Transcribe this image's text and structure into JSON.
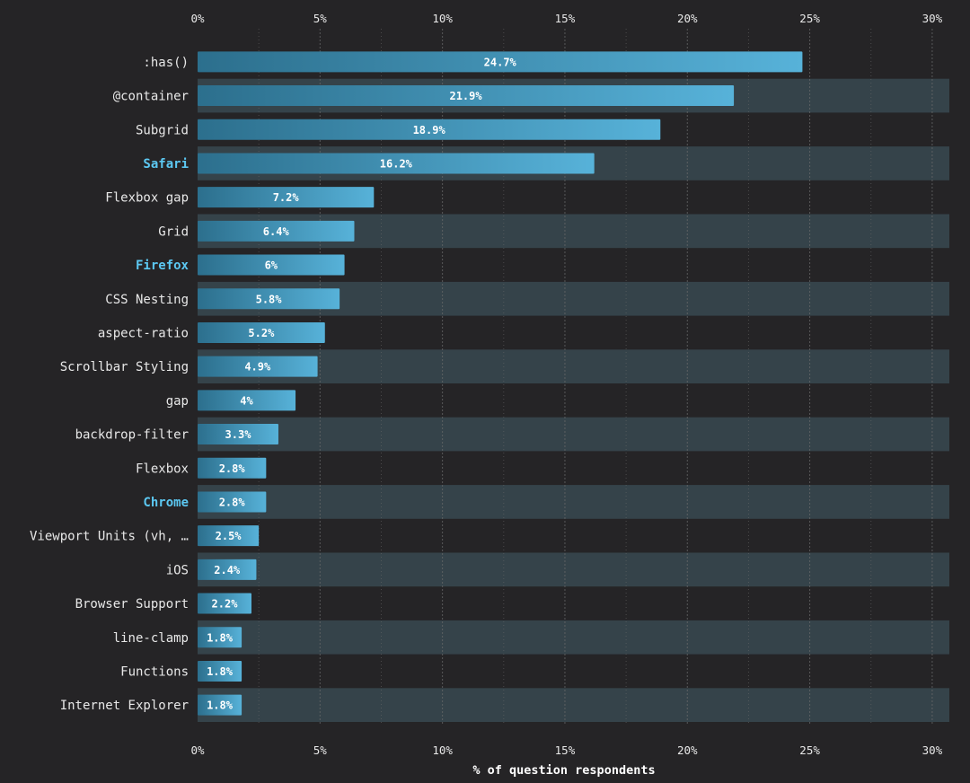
{
  "colors": {
    "background": "#252426",
    "stripe": "#35434a",
    "bar_start": "#2c6f8d",
    "bar_end": "#57b2d9",
    "highlight_label": "#5cc8f2",
    "label": "#e8e8e8",
    "grid": "#6a6a6a"
  },
  "chart_data": {
    "type": "bar",
    "orientation": "horizontal",
    "title": "",
    "xlabel": "% of question respondents",
    "ylabel": "",
    "xlim": [
      0,
      30
    ],
    "ticks": [
      "0%",
      "5%",
      "10%",
      "15%",
      "20%",
      "25%",
      "30%"
    ],
    "tick_values": [
      0,
      5,
      10,
      15,
      20,
      25,
      30
    ],
    "categories": [
      ":has()",
      "@container",
      "Subgrid",
      "Safari",
      "Flexbox gap",
      "Grid",
      "Firefox",
      "CSS Nesting",
      "aspect-ratio",
      "Scrollbar Styling",
      "gap",
      "backdrop-filter",
      "Flexbox",
      "Chrome",
      "Viewport Units (vh, …",
      "iOS",
      "Browser Support",
      "line-clamp",
      "Functions",
      "Internet Explorer"
    ],
    "values": [
      24.7,
      21.9,
      18.9,
      16.2,
      7.2,
      6.4,
      6,
      5.8,
      5.2,
      4.9,
      4,
      3.3,
      2.8,
      2.8,
      2.5,
      2.4,
      2.2,
      1.8,
      1.8,
      1.8
    ],
    "value_labels": [
      "24.7%",
      "21.9%",
      "18.9%",
      "16.2%",
      "7.2%",
      "6.4%",
      "6%",
      "5.8%",
      "5.2%",
      "4.9%",
      "4%",
      "3.3%",
      "2.8%",
      "2.8%",
      "2.5%",
      "2.4%",
      "2.2%",
      "1.8%",
      "1.8%",
      "1.8%"
    ],
    "highlighted": [
      "Safari",
      "Firefox",
      "Chrome"
    ],
    "grid": true
  }
}
